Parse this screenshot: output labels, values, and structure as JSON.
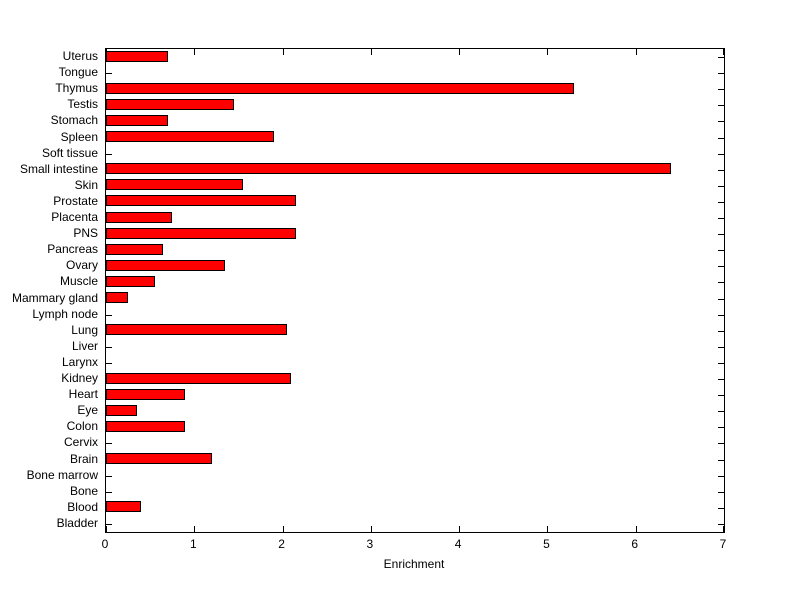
{
  "chart_data": {
    "type": "bar",
    "orientation": "horizontal",
    "title": "",
    "xlabel": "Enrichment",
    "ylabel": "",
    "xlim": [
      0,
      7
    ],
    "xticks": [
      0,
      1,
      2,
      3,
      4,
      5,
      6,
      7
    ],
    "grid": false,
    "legend": null,
    "bar_color": "#FF0000",
    "bar_edge_color": "#000000",
    "categories_order": "top-to-bottom",
    "categories": [
      "Uterus",
      "Tongue",
      "Thymus",
      "Testis",
      "Stomach",
      "Spleen",
      "Soft tissue",
      "Small intestine",
      "Skin",
      "Prostate",
      "Placenta",
      "PNS",
      "Pancreas",
      "Ovary",
      "Muscle",
      "Mammary gland",
      "Lymph node",
      "Lung",
      "Liver",
      "Larynx",
      "Kidney",
      "Heart",
      "Eye",
      "Colon",
      "Cervix",
      "Brain",
      "Bone marrow",
      "Bone",
      "Blood",
      "Bladder"
    ],
    "values": [
      0.7,
      0,
      5.3,
      1.45,
      0.7,
      1.9,
      0,
      6.4,
      1.55,
      2.15,
      0.75,
      2.15,
      0.65,
      1.35,
      0.55,
      0.25,
      0,
      2.05,
      0,
      0,
      2.1,
      0.9,
      0.35,
      0.9,
      0,
      1.2,
      0,
      0,
      0.4,
      0
    ]
  }
}
